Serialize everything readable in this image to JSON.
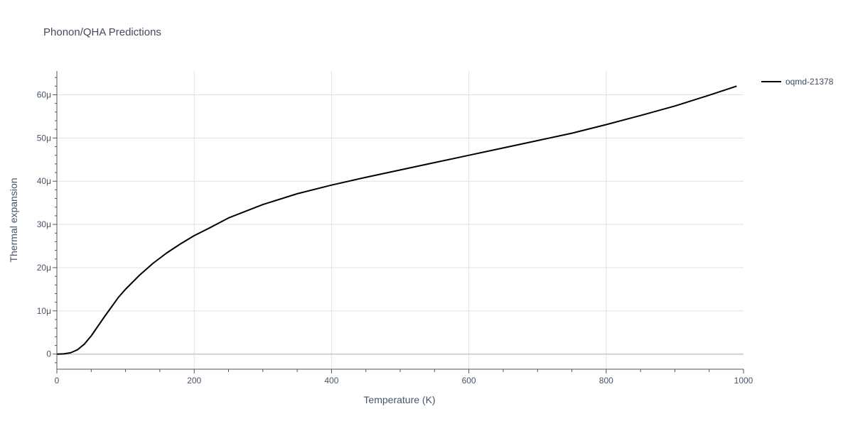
{
  "chart_data": {
    "type": "line",
    "title": "Phonon/QHA Predictions",
    "xlabel": "Temperature (K)",
    "ylabel": "Thermal expansion",
    "xlim": [
      0,
      1000
    ],
    "ylim": [
      -3.5,
      65.5
    ],
    "x_ticks": [
      0,
      200,
      400,
      600,
      800,
      1000
    ],
    "x_tick_labels": [
      "0",
      "200",
      "400",
      "600",
      "800",
      "1000"
    ],
    "y_ticks": [
      0,
      10,
      20,
      30,
      40,
      50,
      60
    ],
    "y_tick_labels": [
      "0",
      "10μ",
      "20μ",
      "30μ",
      "40μ",
      "50μ",
      "60μ"
    ],
    "grid": true,
    "legend_position": "top-right",
    "series": [
      {
        "name": "oqmd-21378",
        "color": "#000000",
        "x": [
          0,
          10,
          20,
          30,
          40,
          50,
          60,
          70,
          80,
          90,
          100,
          120,
          140,
          160,
          180,
          200,
          220,
          250,
          300,
          350,
          400,
          450,
          500,
          550,
          600,
          650,
          700,
          750,
          800,
          850,
          900,
          950,
          990
        ],
        "y": [
          0,
          0.05,
          0.3,
          1.0,
          2.3,
          4.2,
          6.5,
          8.8,
          11.0,
          13.2,
          15.0,
          18.2,
          21.0,
          23.4,
          25.5,
          27.4,
          29.0,
          31.5,
          34.6,
          37.1,
          39.1,
          40.9,
          42.6,
          44.3,
          46.0,
          47.7,
          49.4,
          51.1,
          53.1,
          55.2,
          57.4,
          59.9,
          62.0
        ]
      }
    ]
  }
}
